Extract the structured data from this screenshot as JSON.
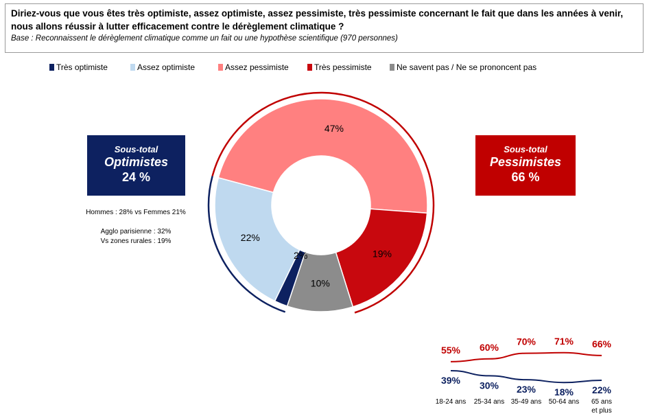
{
  "question": {
    "title": "Diriez-vous que vous êtes très optimiste, assez optimiste, assez pessimiste, très pessimiste concernant le fait que dans les années à venir, nous allons réussir à lutter efficacement contre le dérèglement climatique ?",
    "base": "Base : Reconnaissent le dérèglement climatique comme un fait ou une hypothèse scientifique (970 personnes)"
  },
  "colors": {
    "tres_optimiste": "#0d2160",
    "assez_optimiste": "#bfd9ef",
    "assez_pessimiste": "#ff8080",
    "tres_pessimiste": "#c8080e",
    "nsp": "#8c8c8c"
  },
  "chart_data": [
    {
      "type": "pie",
      "donut": true,
      "categories": [
        "Très optimiste",
        "Assez optimiste",
        "Assez pessimiste",
        "Très pessimiste",
        "Ne savent pas / Ne se prononcent pas"
      ],
      "slices": [
        {
          "label": "Assez pessimiste",
          "value": 47,
          "text": "47%",
          "color": "#ff8080"
        },
        {
          "label": "Très pessimiste",
          "value": 19,
          "text": "19%",
          "color": "#c8080e"
        },
        {
          "label": "Ne savent pas / Ne se prononcent pas",
          "value": 10,
          "text": "10%",
          "color": "#8c8c8c"
        },
        {
          "label": "Très optimiste",
          "value": 2,
          "text": "2%",
          "color": "#0d2160"
        },
        {
          "label": "Assez optimiste",
          "value": 22,
          "text": "22%",
          "color": "#bfd9ef"
        }
      ]
    },
    {
      "type": "line",
      "categories": [
        "18-24 ans",
        "25-34 ans",
        "35-49 ans",
        "50-64 ans",
        "65 ans et plus"
      ],
      "series": [
        {
          "values": [
            55,
            60,
            70,
            71,
            66
          ],
          "labels": [
            "55%",
            "60%",
            "70%",
            "71%",
            "66%"
          ],
          "color": "#c00000"
        },
        {
          "values": [
            39,
            30,
            23,
            18,
            22
          ],
          "labels": [
            "39%",
            "30%",
            "23%",
            "18%",
            "22%"
          ],
          "color": "#0d2160"
        }
      ]
    }
  ],
  "subtotals": {
    "optimistes": {
      "caption": "Sous-total",
      "label": "Optimistes",
      "value": "24 %",
      "color": "#0d2160"
    },
    "pessimistes": {
      "caption": "Sous-total",
      "label": "Pessimistes",
      "value": "66 %",
      "color": "#c00000"
    }
  },
  "notes": {
    "gender": "Hommes : 28% vs Femmes 21%",
    "agglo": "Agglo parisienne : 32%",
    "rural": "Vs zones rurales : 19%"
  }
}
